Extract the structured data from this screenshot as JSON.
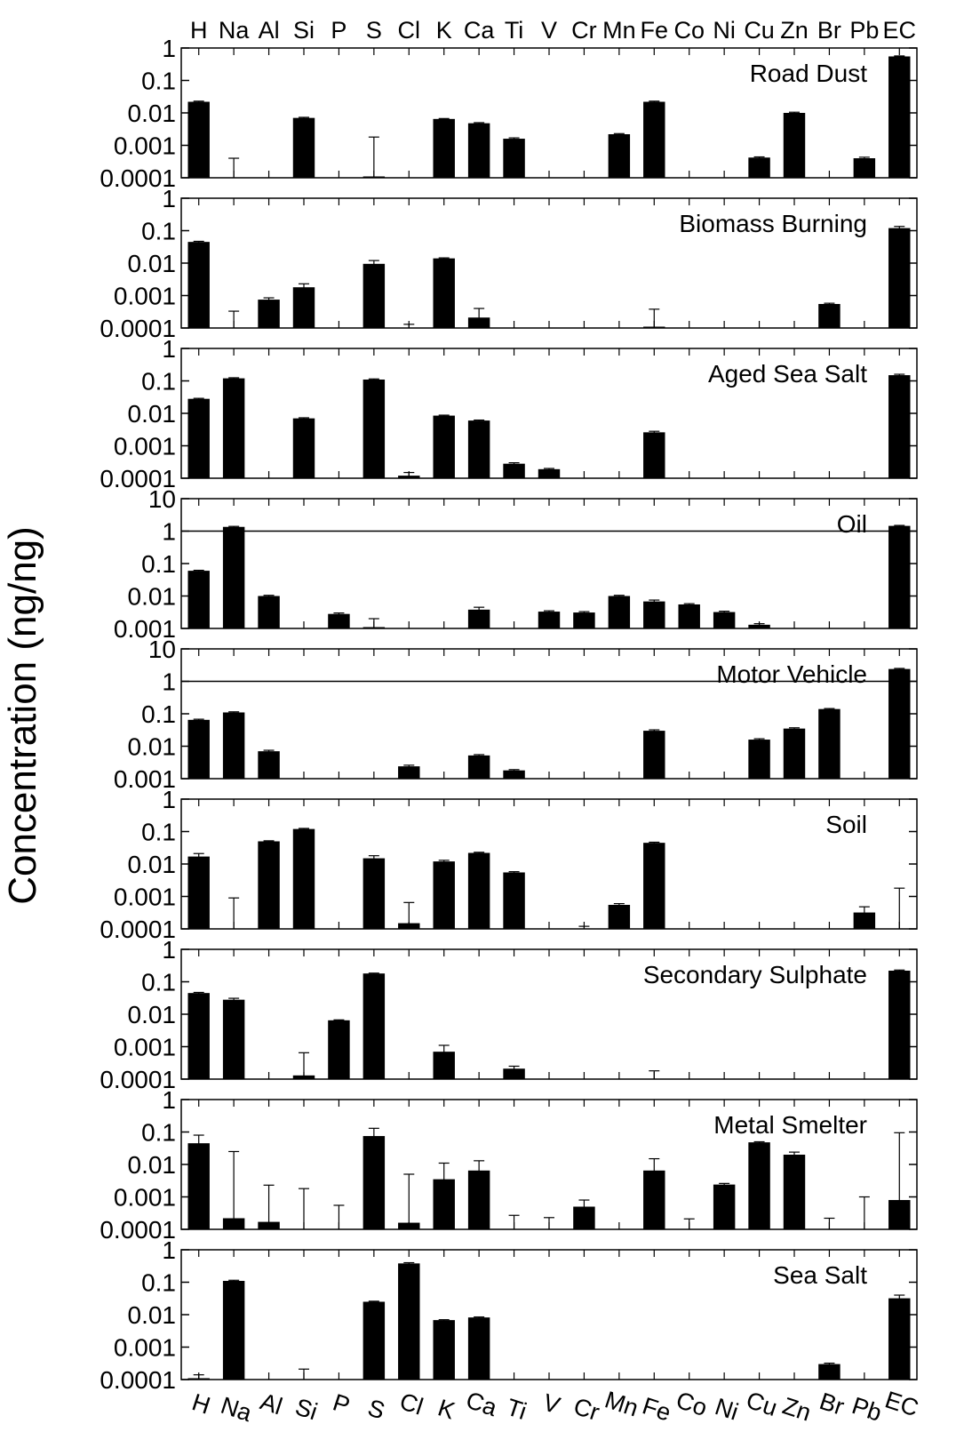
{
  "chart_data": {
    "type": "bar",
    "ylabel": "Concentration (ng/ng)",
    "yscale": "log",
    "categories": [
      "H",
      "Na",
      "Al",
      "Si",
      "P",
      "S",
      "Cl",
      "K",
      "Ca",
      "Ti",
      "V",
      "Cr",
      "Mn",
      "Fe",
      "Co",
      "Ni",
      "Cu",
      "Zn",
      "Br",
      "Pb",
      "EC"
    ],
    "panels": [
      {
        "name": "Road Dust",
        "ylim": [
          0.0001,
          1
        ],
        "ticks": [
          "0.0001",
          "0.001",
          "0.01",
          "0.1",
          "1"
        ],
        "values": [
          0.022,
          0,
          0,
          0.007,
          0,
          0.00011,
          0,
          0.0065,
          0.0048,
          0.0016,
          0,
          0,
          0.0022,
          0.022,
          0,
          0,
          0.00042,
          0.01,
          0,
          0.0004,
          0.55
        ],
        "errors": [
          0.023,
          0.0004,
          0,
          0.0073,
          0,
          0.0018,
          0,
          0.0067,
          0.005,
          0.0017,
          0,
          0,
          0.0023,
          0.023,
          0,
          0,
          0.00044,
          0.0105,
          0,
          0.00043,
          0.57
        ]
      },
      {
        "name": "Biomass Burning",
        "ylim": [
          0.0001,
          1
        ],
        "ticks": [
          "0.0001",
          "0.001",
          "0.01",
          "0.1",
          "1"
        ],
        "values": [
          0.045,
          0,
          0.00075,
          0.0018,
          0,
          0.0095,
          0.0001,
          0.014,
          0.00021,
          0,
          0,
          0,
          0,
          0.00011,
          0,
          0,
          0,
          0,
          0.00055,
          0,
          0.12
        ],
        "errors": [
          0.047,
          0.00033,
          0.00085,
          0.0023,
          0,
          0.012,
          0.00013,
          0.0145,
          0.0004,
          0,
          0,
          0,
          0,
          0.00038,
          0,
          0,
          0,
          0,
          0.00058,
          0,
          0.135
        ]
      },
      {
        "name": "Aged Sea Salt",
        "ylim": [
          0.0001,
          1
        ],
        "ticks": [
          "0.0001",
          "0.001",
          "0.01",
          "0.1",
          "1"
        ],
        "values": [
          0.028,
          0.12,
          0,
          0.007,
          0,
          0.11,
          0.00012,
          0.0085,
          0.006,
          0.00028,
          0.00019,
          0,
          0,
          0.0026,
          0,
          0,
          0,
          0,
          0,
          0,
          0.15
        ],
        "errors": [
          0.029,
          0.125,
          0,
          0.0073,
          0,
          0.115,
          0.00015,
          0.0088,
          0.0062,
          0.0003,
          0.0002,
          0,
          0,
          0.0028,
          0,
          0,
          0,
          0,
          0,
          0,
          0.16
        ]
      },
      {
        "name": "Oil",
        "ylim": [
          0.001,
          10
        ],
        "ticks": [
          "0.001",
          "0.01",
          "0.1",
          "1",
          "10"
        ],
        "refline": 1,
        "values": [
          0.06,
          1.35,
          0.01,
          0,
          0.0028,
          0.0011,
          0,
          0,
          0.0038,
          0,
          0.0033,
          0.0031,
          0.01,
          0.0068,
          0.0055,
          0.0032,
          0.0013,
          0,
          0,
          0,
          1.45
        ],
        "errors": [
          0.062,
          1.4,
          0.0105,
          0,
          0.003,
          0.002,
          0,
          0,
          0.0045,
          0,
          0.0035,
          0.0033,
          0.0105,
          0.0075,
          0.0058,
          0.0034,
          0.0014,
          0,
          0,
          0,
          1.5
        ]
      },
      {
        "name": "Motor Vehicle",
        "ylim": [
          0.001,
          10
        ],
        "ticks": [
          "0.001",
          "0.01",
          "0.1",
          "1",
          "10"
        ],
        "refline": 1,
        "values": [
          0.065,
          0.11,
          0.007,
          0,
          0,
          0,
          0.0024,
          0,
          0.0052,
          0.0018,
          0,
          0,
          0,
          0.03,
          0,
          0,
          0.016,
          0.035,
          0.14,
          0,
          2.4
        ],
        "errors": [
          0.068,
          0.115,
          0.0075,
          0,
          0,
          0,
          0.0026,
          0,
          0.0055,
          0.0019,
          0,
          0,
          0,
          0.032,
          0,
          0,
          0.017,
          0.037,
          0.145,
          0,
          2.5
        ]
      },
      {
        "name": "Soil",
        "ylim": [
          0.0001,
          1
        ],
        "ticks": [
          "0.0001",
          "0.001",
          "0.01",
          "0.1",
          "1"
        ],
        "values": [
          0.017,
          0,
          0.05,
          0.12,
          0,
          0.015,
          0.00015,
          0.012,
          0.022,
          0.0055,
          0,
          8e-05,
          0.00055,
          0.045,
          5e-05,
          0,
          0,
          0,
          0,
          0.00032,
          0
        ],
        "errors": [
          0.021,
          0.0009,
          0.052,
          0.125,
          0,
          0.018,
          0.00065,
          0.013,
          0.023,
          0.0058,
          0,
          0.00012,
          0.0006,
          0.047,
          0.0001,
          0,
          0,
          0,
          0,
          0.00048,
          0.0018
        ]
      },
      {
        "name": "Secondary Sulphate",
        "ylim": [
          0.0001,
          1
        ],
        "ticks": [
          "0.0001",
          "0.001",
          "0.01",
          "0.1",
          "1"
        ],
        "values": [
          0.045,
          0.028,
          0,
          0.00013,
          0.0065,
          0.18,
          0,
          0.0007,
          0,
          0.00021,
          0,
          0,
          0,
          5e-05,
          0,
          0,
          0,
          0,
          0,
          0,
          0.22
        ],
        "errors": [
          0.047,
          0.031,
          0,
          0.00065,
          0.0067,
          0.185,
          0,
          0.0011,
          0,
          0.00025,
          0,
          0,
          0,
          0.00018,
          0,
          0,
          0,
          0,
          0,
          0,
          0.23
        ]
      },
      {
        "name": "Metal Smelter",
        "ylim": [
          0.0001,
          1
        ],
        "ticks": [
          "0.0001",
          "0.001",
          "0.01",
          "0.1",
          "1"
        ],
        "values": [
          0.045,
          0.00022,
          0.00017,
          0,
          0,
          0.075,
          0.00016,
          0.0035,
          0.0065,
          0,
          0,
          0.0005,
          0,
          0.0065,
          0,
          0.0024,
          0.048,
          0.02,
          0,
          0,
          0.0008
        ],
        "errors": [
          0.08,
          0.025,
          0.0023,
          0.0018,
          0.00055,
          0.13,
          0.005,
          0.011,
          0.013,
          0.00027,
          0.00023,
          0.0008,
          0,
          0.015,
          0.00021,
          0.0026,
          0.05,
          0.024,
          0.00022,
          0.001,
          0.095
        ]
      },
      {
        "name": "Sea Salt",
        "ylim": [
          0.0001,
          1
        ],
        "ticks": [
          "0.0001",
          "0.001",
          "0.01",
          "0.1",
          "1"
        ],
        "values": [
          0.00011,
          0.11,
          0,
          8e-05,
          0,
          0.025,
          0.38,
          0.0068,
          0.0082,
          0,
          0,
          0,
          0,
          0,
          0,
          0,
          0,
          0,
          0.0003,
          0,
          0.032
        ],
        "errors": [
          0.00014,
          0.115,
          0,
          0.00021,
          0,
          0.026,
          0.4,
          0.007,
          0.0085,
          0,
          0,
          0,
          0,
          0,
          0,
          0,
          0,
          0,
          0.00032,
          0,
          0.04
        ]
      }
    ]
  }
}
